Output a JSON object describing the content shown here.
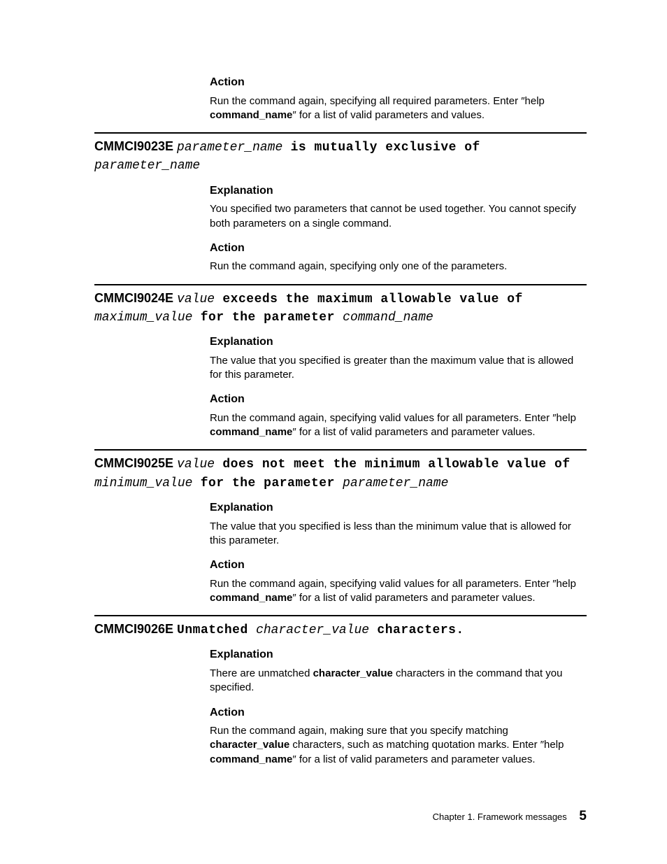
{
  "page": {
    "footer_chapter": "Chapter 1. Framework messages",
    "page_number": "5"
  },
  "intro": {
    "action_h": "Action",
    "action_p1a": "Run the command again, specifying all required parameters. Enter ″help ",
    "action_p1_cmd": "command_name",
    "action_p1b": "″ for a list of valid parameters and values."
  },
  "messages": [
    {
      "code": "CMMCI9023E",
      "title_parts": [
        {
          "t": "mono-i",
          "v": "parameter_name"
        },
        {
          "t": "mono-b",
          "v": " is mutually exclusive of "
        },
        {
          "t": "mono-i",
          "v": "parameter_name"
        }
      ],
      "explanation_h": "Explanation",
      "explanation_p": "You specified two parameters that cannot be used together. You cannot specify both parameters on a single command.",
      "action_h": "Action",
      "action_parts": [
        {
          "t": "n",
          "v": "Run the command again, specifying only one of the parameters."
        }
      ]
    },
    {
      "code": "CMMCI9024E",
      "title_parts": [
        {
          "t": "mono-i",
          "v": "value"
        },
        {
          "t": "mono-b",
          "v": " exceeds the maximum allowable value of "
        },
        {
          "t": "mono-i",
          "v": "maximum_value"
        },
        {
          "t": "mono-b",
          "v": " for the parameter "
        },
        {
          "t": "mono-i",
          "v": "command_name"
        }
      ],
      "explanation_h": "Explanation",
      "explanation_p": "The value that you specified is greater than the maximum value that is allowed for this parameter.",
      "action_h": "Action",
      "action_parts": [
        {
          "t": "n",
          "v": "Run the command again, specifying valid values for all parameters. Enter ″help "
        },
        {
          "t": "b",
          "v": "command_name"
        },
        {
          "t": "n",
          "v": "″ for a list of valid parameters and parameter values."
        }
      ]
    },
    {
      "code": "CMMCI9025E",
      "title_parts": [
        {
          "t": "mono-i",
          "v": "value"
        },
        {
          "t": "mono-b",
          "v": " does not meet the minimum allowable value of "
        },
        {
          "t": "mono-i",
          "v": "minimum_value"
        },
        {
          "t": "mono-b",
          "v": " for the parameter "
        },
        {
          "t": "mono-i",
          "v": "parameter_name"
        }
      ],
      "explanation_h": "Explanation",
      "explanation_p": "The value that you specified is less than the minimum value that is allowed for this parameter.",
      "action_h": "Action",
      "action_parts": [
        {
          "t": "n",
          "v": "Run the command again, specifying valid values for all parameters. Enter ″help "
        },
        {
          "t": "b",
          "v": "command_name"
        },
        {
          "t": "n",
          "v": "″ for a list of valid parameters and parameter values."
        }
      ]
    },
    {
      "code": "CMMCI9026E",
      "title_parts": [
        {
          "t": "mono-b",
          "v": "Unmatched "
        },
        {
          "t": "mono-i",
          "v": "character_value"
        },
        {
          "t": "mono-b",
          "v": " characters."
        }
      ],
      "explanation_h": "Explanation",
      "explanation_parts": [
        {
          "t": "n",
          "v": "There are unmatched "
        },
        {
          "t": "b",
          "v": "character_value"
        },
        {
          "t": "n",
          "v": " characters in the command that you specified."
        }
      ],
      "action_h": "Action",
      "action_parts": [
        {
          "t": "n",
          "v": "Run the command again, making sure that you specify matching "
        },
        {
          "t": "b",
          "v": "character_value"
        },
        {
          "t": "n",
          "v": " characters, such as matching quotation marks. Enter ″help "
        },
        {
          "t": "b",
          "v": "command_name"
        },
        {
          "t": "n",
          "v": "″ for a list of valid parameters and parameter values."
        }
      ]
    }
  ]
}
